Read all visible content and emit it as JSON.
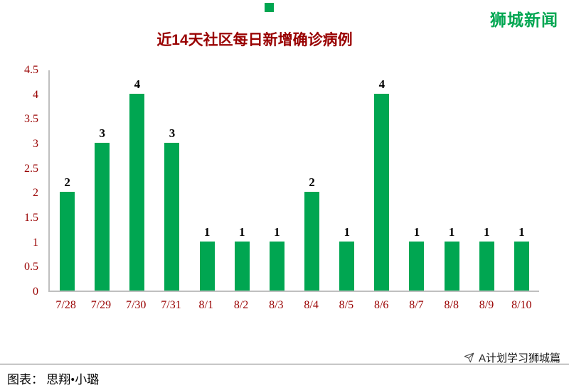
{
  "brand": {
    "name": "狮城新闻",
    "color": "#00a651"
  },
  "chart_data": {
    "type": "bar",
    "title": "近14天社区每日新增确诊病例",
    "categories": [
      "7/28",
      "7/29",
      "7/30",
      "7/31",
      "8/1",
      "8/2",
      "8/3",
      "8/4",
      "8/5",
      "8/6",
      "8/7",
      "8/8",
      "8/9",
      "8/10"
    ],
    "values": [
      2,
      3,
      4,
      3,
      1,
      1,
      1,
      2,
      1,
      4,
      1,
      1,
      1,
      1
    ],
    "ylim": [
      0,
      4.5
    ],
    "yticks": [
      4.5,
      4,
      3.5,
      3,
      2.5,
      2,
      1.5,
      1,
      0.5,
      0
    ],
    "ytick_labels": [
      "4.5",
      "4",
      "3.5",
      "3",
      "2.5",
      "2",
      "1.5",
      "1",
      "0.5",
      "0"
    ],
    "xlabel": "",
    "ylabel": "",
    "grid": false,
    "legend": "none",
    "bar_color": "#00a651",
    "title_color": "#990000",
    "axis_tick_color": "#990000",
    "value_label_color": "#000000"
  },
  "footer": {
    "credit": "图表： 思翔•小璐",
    "channel": "A计划学习狮城篇"
  }
}
